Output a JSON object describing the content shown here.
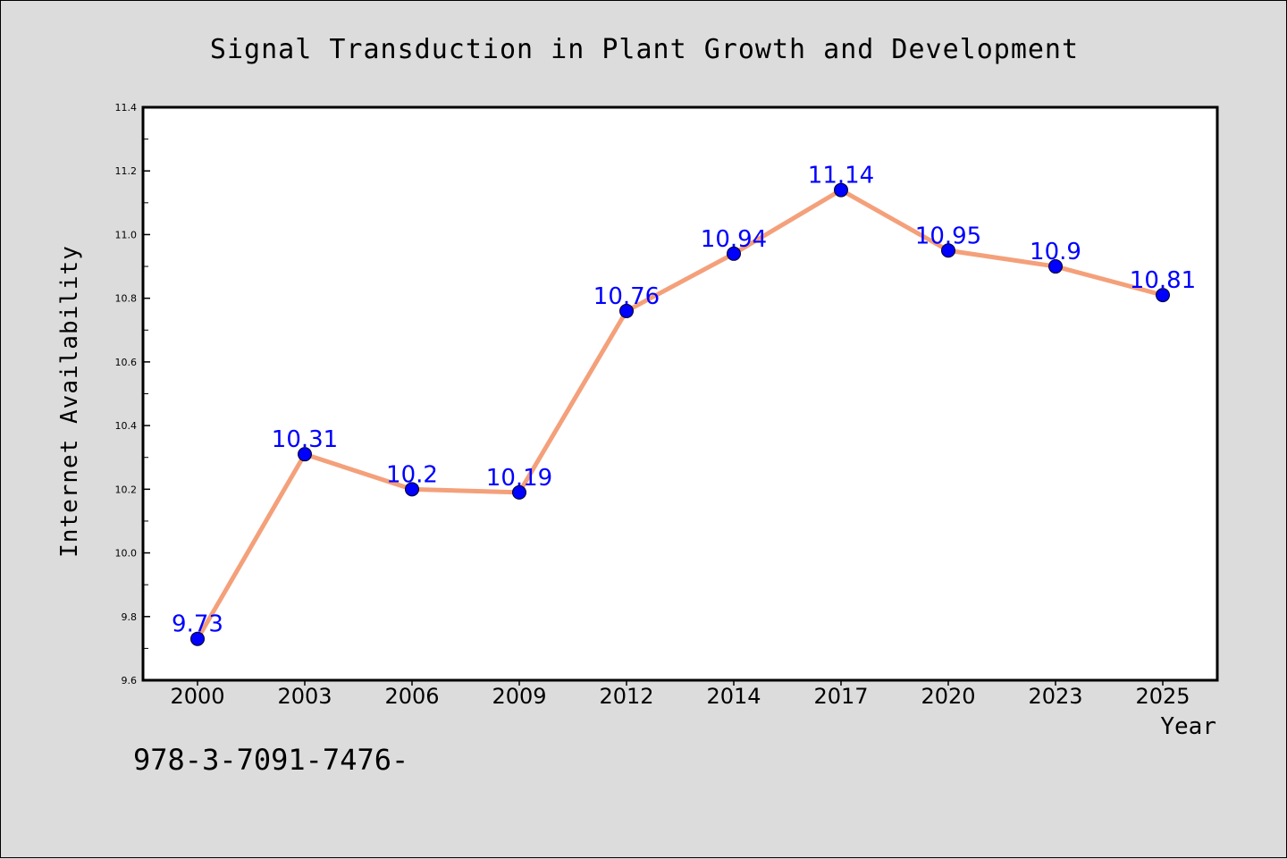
{
  "chart_data": {
    "type": "line",
    "title": "Signal Transduction in Plant Growth and Development",
    "xlabel": "Year",
    "ylabel": "Internet Availability",
    "categories": [
      "2000",
      "2003",
      "2006",
      "2009",
      "2012",
      "2014",
      "2017",
      "2020",
      "2023",
      "2025"
    ],
    "series": [
      {
        "values": [
          9.73,
          10.31,
          10.2,
          10.19,
          10.76,
          10.94,
          11.14,
          10.95,
          10.9,
          10.81
        ],
        "data_labels": [
          "9.73",
          "10.31",
          "10.2",
          "10.19",
          "10.76",
          "10.94",
          "11.14",
          "10.95",
          "10.9",
          "10.81"
        ]
      }
    ],
    "ylim": [
      9.6,
      11.4
    ],
    "yticks": [
      "9.6",
      "9.8",
      "10.0",
      "10.2",
      "10.4",
      "10.6",
      "10.8",
      "11.0",
      "11.2",
      "11.4"
    ],
    "grid": false,
    "legend": "none",
    "colors": {
      "line": "#f4a07a",
      "marker": "#0000ff",
      "label": "#0000ff",
      "background": "#dcdcdc",
      "plot_area": "#ffffff"
    }
  },
  "footnote": "978-3-7091-7476-"
}
